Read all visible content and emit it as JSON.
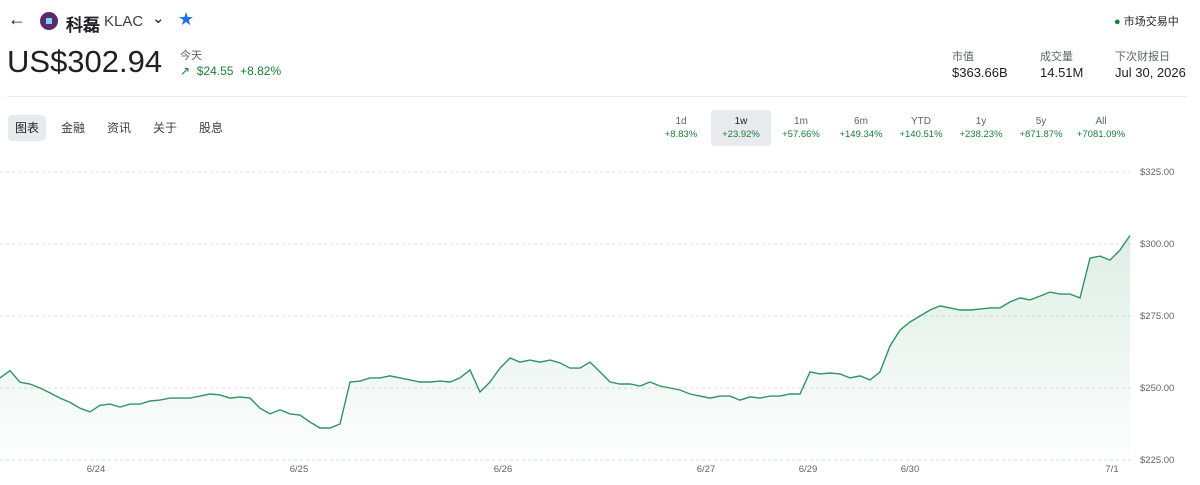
{
  "header": {
    "name": "科磊",
    "ticker": "KLAC",
    "status": "市场交易中"
  },
  "quote": {
    "price": "US$302.94",
    "period": "今天",
    "change": "$24.55",
    "change_pct": "+8.82%"
  },
  "stats": [
    {
      "label": "市值",
      "value": "$363.66B"
    },
    {
      "label": "成交量",
      "value": "14.51M"
    },
    {
      "label": "下次财报日",
      "value": "Jul 30, 2026"
    }
  ],
  "tabs": [
    "图表",
    "金融",
    "资讯",
    "关于",
    "股息"
  ],
  "ranges": [
    {
      "label": "1d",
      "change": "+8.83%"
    },
    {
      "label": "1w",
      "change": "+23.92%"
    },
    {
      "label": "1m",
      "change": "+57.66%"
    },
    {
      "label": "6m",
      "change": "+149.34%"
    },
    {
      "label": "YTD",
      "change": "+140.51%"
    },
    {
      "label": "1y",
      "change": "+238.23%"
    },
    {
      "label": "5y",
      "change": "+871.87%"
    },
    {
      "label": "All",
      "change": "+7081.09%"
    }
  ],
  "chart_data": {
    "type": "line",
    "color": "#2f9462",
    "values": [
      253.5,
      256,
      252,
      251.4,
      250,
      248.3,
      246.5,
      245,
      243,
      241.7,
      244,
      244.4,
      243.4,
      244.4,
      244.4,
      245.5,
      245.8,
      246.5,
      246.5,
      246.5,
      247.2,
      247.9,
      247.6,
      246.5,
      246.9,
      246.5,
      243,
      241,
      242.4,
      241,
      240.6,
      238.2,
      236.1,
      236.1,
      237.5,
      252.1,
      252.4,
      253.5,
      253.5,
      254.2,
      253.5,
      252.8,
      252.1,
      252.1,
      252.4,
      252.1,
      253.5,
      256.3,
      248.6,
      252.1,
      256.9,
      260.4,
      259,
      259.7,
      259,
      259.7,
      258.7,
      256.9,
      256.9,
      259,
      255.6,
      252.1,
      251.4,
      251.4,
      250.7,
      252.1,
      250.7,
      250,
      249.3,
      247.9,
      247.2,
      246.5,
      247.2,
      247.2,
      245.8,
      246.9,
      246.5,
      247.2,
      247.2,
      247.9,
      247.9,
      255.6,
      254.9,
      255.2,
      254.9,
      253.5,
      254.2,
      252.8,
      255.6,
      264.6,
      270.1,
      272.9,
      275,
      277.1,
      278.5,
      277.8,
      277.1,
      277.1,
      277.4,
      277.8,
      277.8,
      279.9,
      281.3,
      280.6,
      281.9,
      283.3,
      282.6,
      282.6,
      281.3,
      295.1,
      295.8,
      294.4,
      297.9,
      302.94
    ],
    "xlim": [
      0,
      113.2
    ],
    "xticks": [
      {
        "value": 9.6,
        "label": "6/24"
      },
      {
        "value": 29.9,
        "label": "6/25"
      },
      {
        "value": 50.3,
        "label": "6/26"
      },
      {
        "value": 70.6,
        "label": "6/27"
      },
      {
        "value": 80.8,
        "label": "6/29"
      },
      {
        "value": 91,
        "label": "6/30"
      },
      {
        "value": 111.2,
        "label": "7/1"
      }
    ],
    "ylim": [
      225,
      325
    ],
    "yticks": [
      {
        "value": 225,
        "label": "$225.00"
      },
      {
        "value": 250,
        "label": "$250.00"
      },
      {
        "value": 275,
        "label": "$275.00"
      },
      {
        "value": 300,
        "label": "$300.00"
      },
      {
        "value": 325,
        "label": "$325.00"
      }
    ],
    "grid": true
  }
}
